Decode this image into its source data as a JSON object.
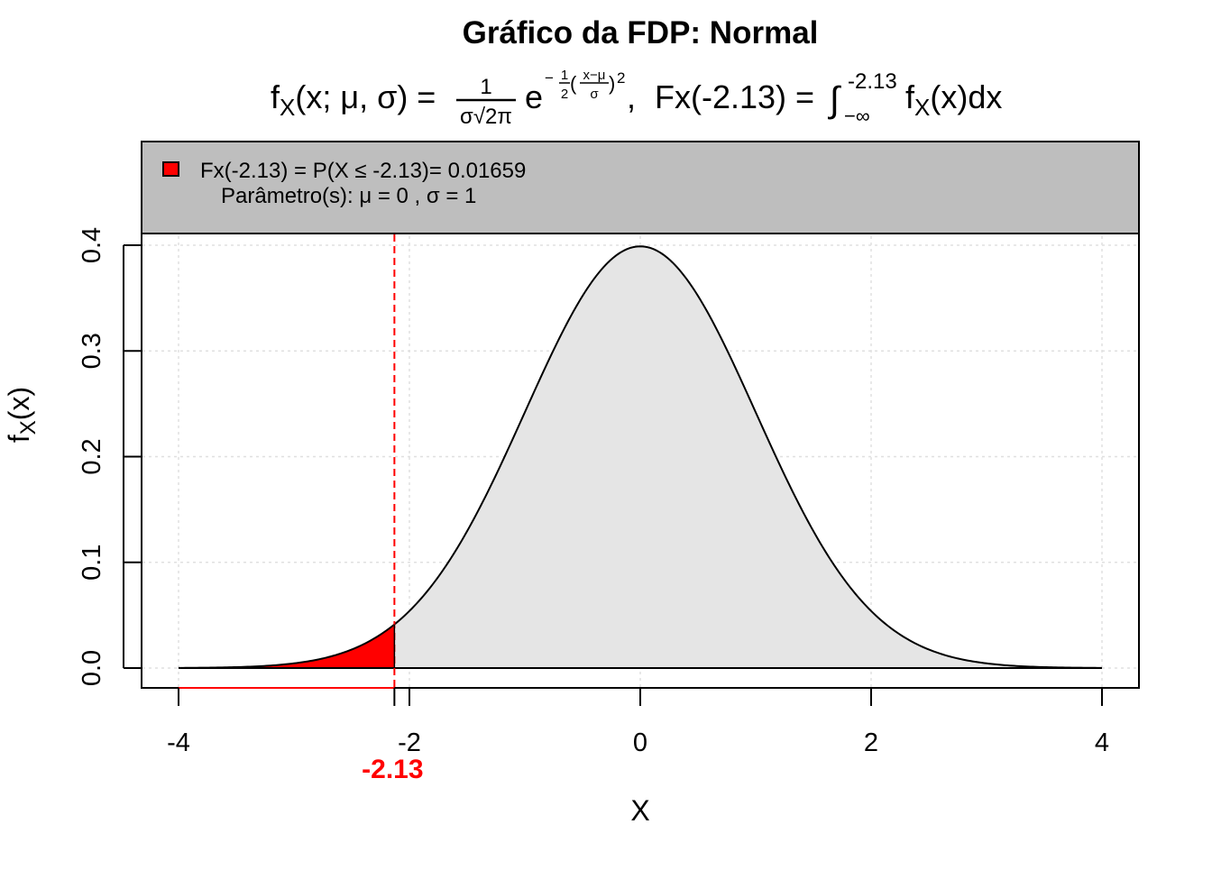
{
  "chart_data": {
    "type": "area",
    "title": "Gráfico da FDP: Normal",
    "subtitle": {
      "lhs": "f",
      "lhs_sub": "X",
      "lhs_args": "(x; μ, σ) =",
      "frac_num": "1",
      "frac_den": "σ√2π",
      "exp_base": "e",
      "exp_sign": "−",
      "exp_frac_num": "1",
      "exp_frac_den": "2",
      "exp_inner_num": "x−μ",
      "exp_inner_den": "σ",
      "exp_power": "2",
      "separator": ",",
      "cdf_lhs": "Fx(-2.13) =",
      "integral": "∫",
      "int_upper": "-2.13",
      "int_lower": "−∞",
      "integrand": "f",
      "integrand_sub": "X",
      "integrand_rest": "(x)dx"
    },
    "xlabel": "X",
    "ylabel": "f",
    "ylabel_sub": "X",
    "ylabel_rest": "(x)",
    "xlim": [
      -4,
      4
    ],
    "ylim": [
      0,
      0.4
    ],
    "xticks": [
      -4,
      -2,
      0,
      2,
      4
    ],
    "xtick_labels": [
      "-4",
      "-2",
      "0",
      "2",
      "4"
    ],
    "yticks": [
      0,
      0.1,
      0.2,
      0.3,
      0.4
    ],
    "ytick_labels": [
      "0.0",
      "0.1",
      "0.2",
      "0.3",
      "0.4"
    ],
    "grid": true,
    "distribution": {
      "name": "Normal",
      "mu": 0,
      "sigma": 1
    },
    "cutoff": -2.13,
    "cutoff_label": "-2.13",
    "probability": 0.01659,
    "legend": {
      "placement": "top",
      "line1": "Fx(-2.13) = P(X ≤ -2.13)= 0.01659",
      "line2": "Parâmetro(s): μ = 0 , σ = 1"
    },
    "colors": {
      "shaded_tail": "#ff0000",
      "body_fill": "#e5e5e5",
      "legend_bg": "#bebebe",
      "grid": "#e0e0e0",
      "cutoff_line": "#ff0000"
    }
  }
}
